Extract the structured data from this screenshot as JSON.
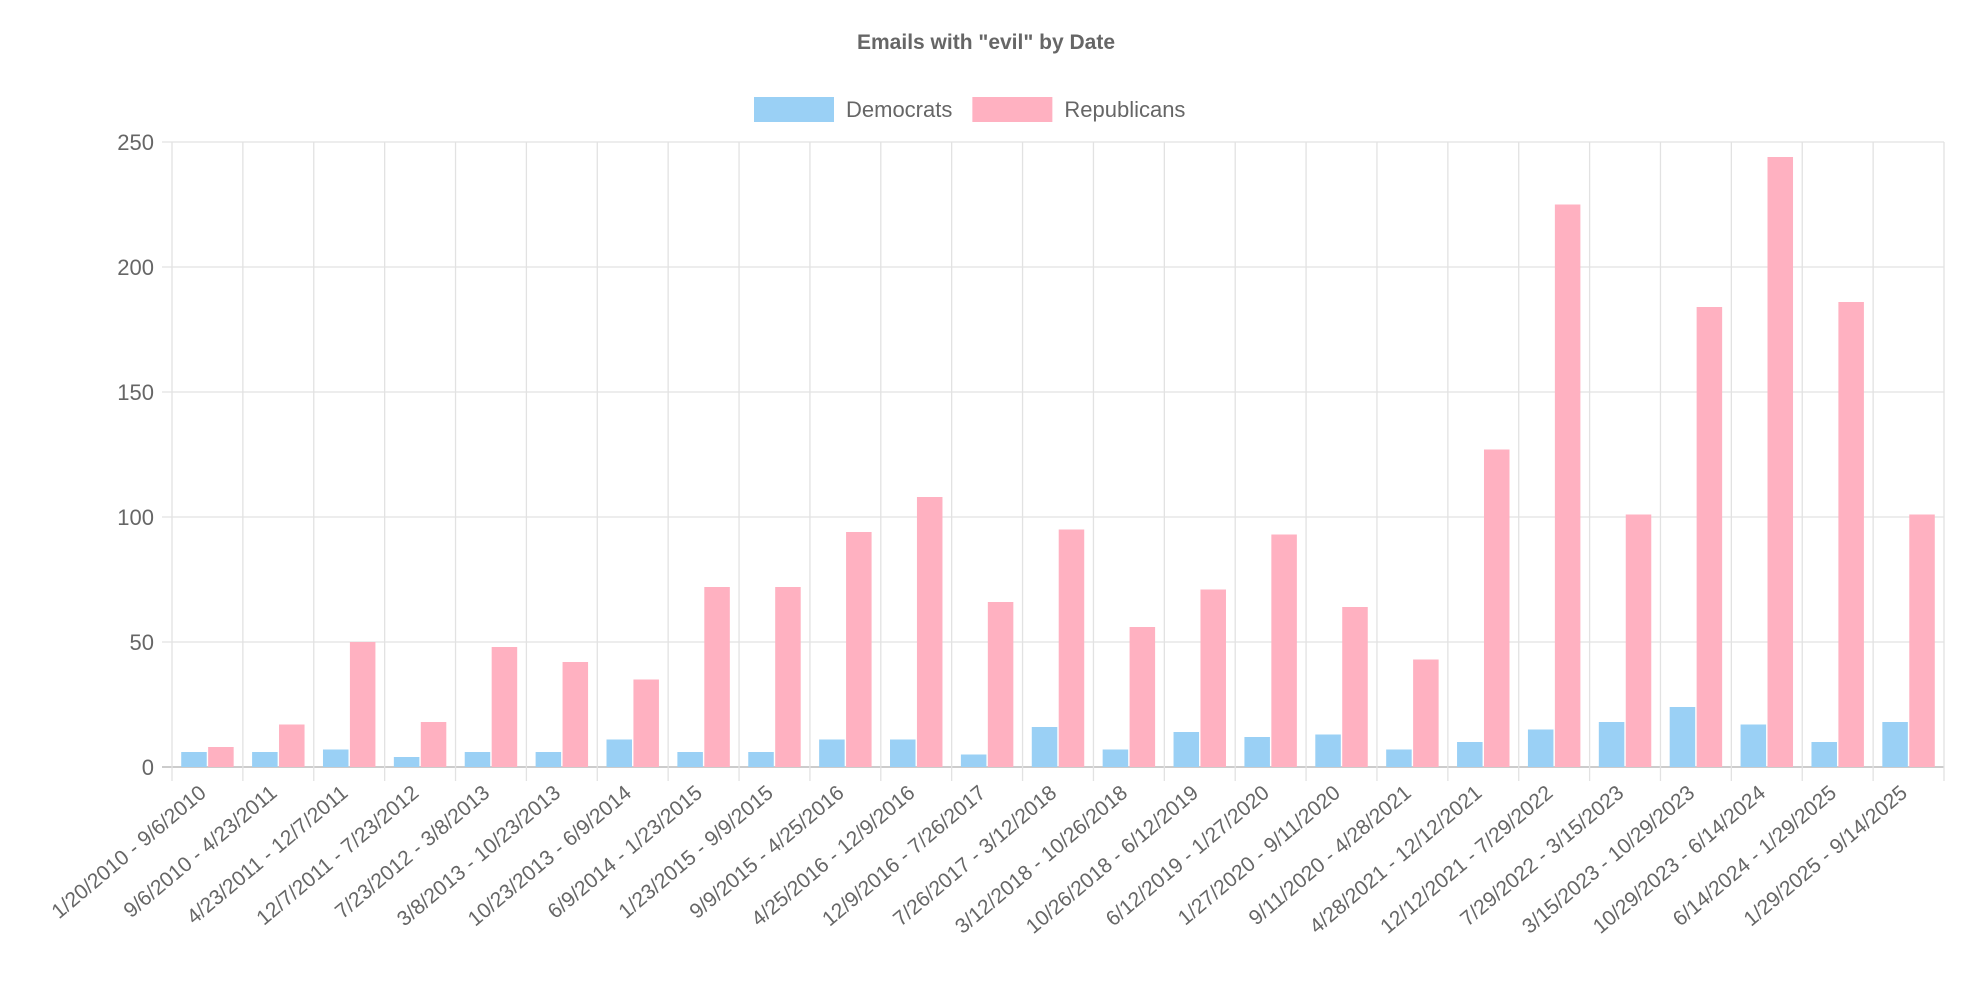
{
  "chart_data": {
    "type": "bar",
    "title": "Emails with \"evil\" by Date",
    "xlabel": "",
    "ylabel": "",
    "ylim": [
      0,
      250
    ],
    "yticks": [
      "0",
      "50",
      "100",
      "150",
      "200",
      "250"
    ],
    "grid": true,
    "legend_position": "top-center",
    "categories": [
      "1/20/2010 - 9/6/2010",
      "9/6/2010 - 4/23/2011",
      "4/23/2011 - 12/7/2011",
      "12/7/2011 - 7/23/2012",
      "7/23/2012 - 3/8/2013",
      "3/8/2013 - 10/23/2013",
      "10/23/2013 - 6/9/2014",
      "6/9/2014 - 1/23/2015",
      "1/23/2015 - 9/9/2015",
      "9/9/2015 - 4/25/2016",
      "4/25/2016 - 12/9/2016",
      "12/9/2016 - 7/26/2017",
      "7/26/2017 - 3/12/2018",
      "3/12/2018 - 10/26/2018",
      "10/26/2018 - 6/12/2019",
      "6/12/2019 - 1/27/2020",
      "1/27/2020 - 9/11/2020",
      "9/11/2020 - 4/28/2021",
      "4/28/2021 - 12/12/2021",
      "12/12/2021 - 7/29/2022",
      "7/29/2022 - 3/15/2023",
      "3/15/2023 - 10/29/2023",
      "10/29/2023 - 6/14/2024",
      "6/14/2024 - 1/29/2025",
      "1/29/2025 - 9/14/2025"
    ],
    "series": [
      {
        "name": "Democrats",
        "color": "#9ad0f5",
        "values": [
          6,
          6,
          7,
          4,
          6,
          6,
          11,
          6,
          6,
          11,
          11,
          5,
          16,
          7,
          14,
          12,
          13,
          7,
          10,
          15,
          18,
          24,
          17,
          10,
          18
        ]
      },
      {
        "name": "Republicans",
        "color": "#ffb1c1",
        "values": [
          8,
          17,
          50,
          18,
          48,
          42,
          35,
          72,
          72,
          94,
          108,
          66,
          95,
          56,
          71,
          93,
          64,
          43,
          127,
          225,
          101,
          184,
          244,
          186,
          101
        ]
      }
    ]
  }
}
